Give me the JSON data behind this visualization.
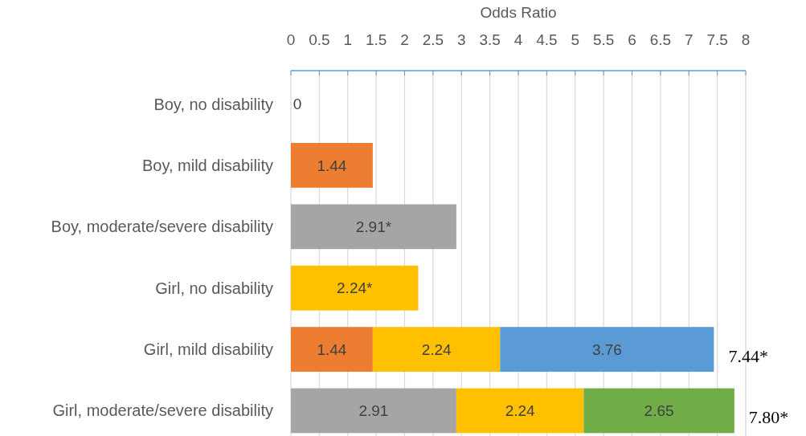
{
  "chart_data": {
    "type": "bar",
    "orientation": "horizontal",
    "stacked": true,
    "xlabel": "Odds Ratio",
    "categories": [
      "Boy, no disability",
      "Boy, mild disability",
      "Boy, moderate/severe disability",
      "Girl, no disability",
      "Girl, mild disability",
      "Girl, moderate/severe disability"
    ],
    "series": [
      {
        "color": "#ed7d31",
        "values": [
          0,
          1.44,
          null,
          null,
          1.44,
          null
        ],
        "value_labels": [
          "0",
          "1.44",
          null,
          null,
          "1.44",
          null
        ]
      },
      {
        "color": "#a5a5a5",
        "values": [
          null,
          null,
          2.91,
          null,
          null,
          2.91
        ],
        "value_labels": [
          null,
          null,
          "2.91*",
          null,
          null,
          "2.91"
        ]
      },
      {
        "color": "#ffc000",
        "values": [
          null,
          null,
          null,
          2.24,
          2.24,
          2.24
        ],
        "value_labels": [
          null,
          null,
          null,
          "2.24*",
          "2.24",
          "2.24"
        ]
      },
      {
        "color": "#5b9bd5",
        "values": [
          null,
          null,
          null,
          null,
          3.76,
          null
        ],
        "value_labels": [
          null,
          null,
          null,
          null,
          "3.76",
          null
        ]
      },
      {
        "color": "#70ad47",
        "values": [
          null,
          null,
          null,
          null,
          null,
          2.65
        ],
        "value_labels": [
          null,
          null,
          null,
          null,
          null,
          "2.65"
        ]
      }
    ],
    "totals": [
      null,
      null,
      null,
      null,
      "7.44*",
      "7.80*"
    ],
    "xlim": [
      0,
      8
    ],
    "xticks": [
      0,
      0.5,
      1,
      1.5,
      2,
      2.5,
      3,
      3.5,
      4,
      4.5,
      5,
      5.5,
      6,
      6.5,
      7,
      7.5,
      8
    ],
    "grid": "x"
  }
}
